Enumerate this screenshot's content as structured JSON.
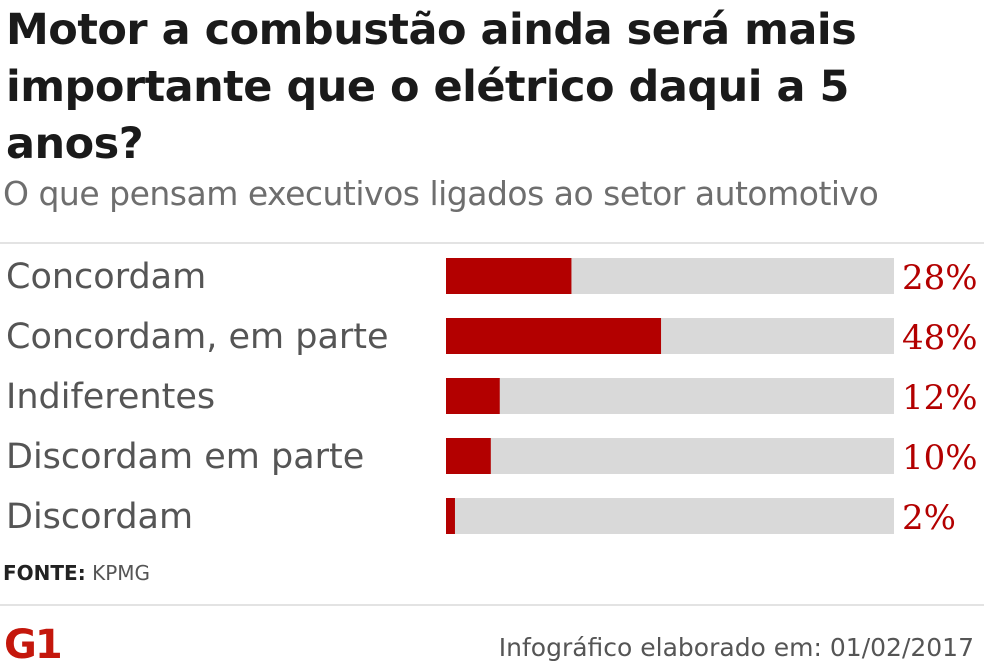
{
  "header": {
    "title": "Motor a combustão ainda será mais importante que o elétrico daqui a 5 anos?",
    "subtitle": "O que pensam executivos ligados ao setor automotivo"
  },
  "chart_data": {
    "type": "bar",
    "orientation": "horizontal",
    "categories": [
      "Concordam",
      "Concordam, em parte",
      "Indiferentes",
      "Discordam em parte",
      "Discordam"
    ],
    "values": [
      28,
      48,
      12,
      10,
      2
    ],
    "value_labels": [
      "28%",
      "48%",
      "12%",
      "10%",
      "2%"
    ],
    "xlim": [
      0,
      100
    ],
    "unit": "%",
    "bar_color": "#b30000",
    "track_color": "#d9d9d9",
    "value_label_color": "#b30000",
    "grid": false
  },
  "source": {
    "label": "FONTE:",
    "text": "KPMG"
  },
  "footer": {
    "logo_text": "G1",
    "logo_color": "#c4170c",
    "note": "Infográfico elaborado em: 01/02/2017"
  }
}
